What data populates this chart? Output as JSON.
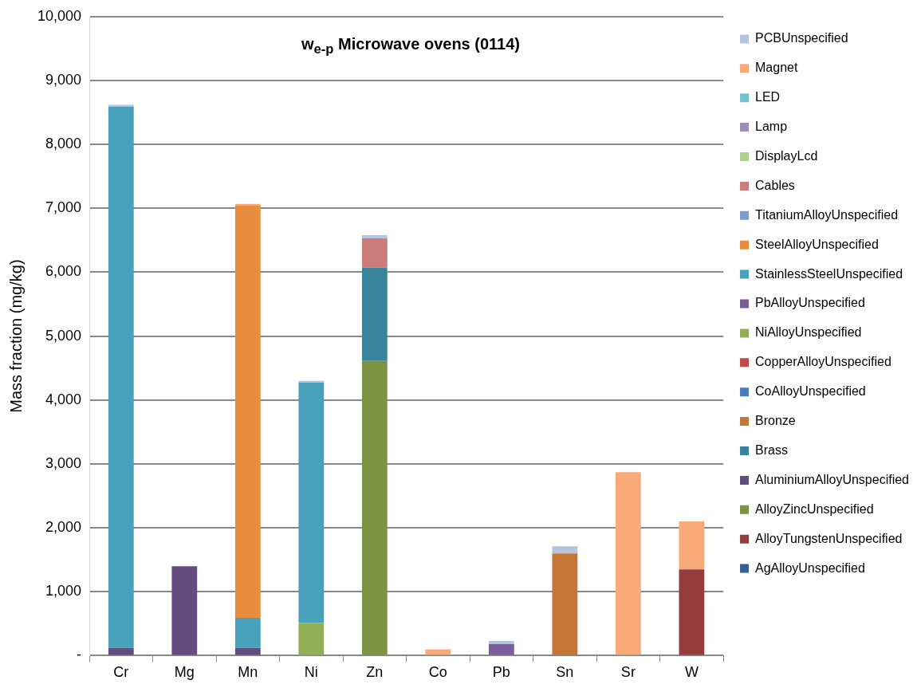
{
  "chart_data": {
    "type": "bar",
    "stacked": true,
    "title": "w$_{e-p}$ Microwave ovens (0114)",
    "ylabel": "Mass fraction (mg/kg)",
    "categories": [
      "Cr",
      "Mg",
      "Mn",
      "Ni",
      "Zn",
      "Co",
      "Pb",
      "Sn",
      "Sr",
      "W"
    ],
    "ylim": [
      0,
      10000
    ],
    "yticks": [
      {
        "value": 0,
        "label": "-"
      },
      {
        "value": 1000,
        "label": "1,000"
      },
      {
        "value": 2000,
        "label": "2,000"
      },
      {
        "value": 3000,
        "label": "3,000"
      },
      {
        "value": 4000,
        "label": "4,000"
      },
      {
        "value": 5000,
        "label": "5,000"
      },
      {
        "value": 6000,
        "label": "6,000"
      },
      {
        "value": 7000,
        "label": "7,000"
      },
      {
        "value": 8000,
        "label": "8,000"
      },
      {
        "value": 9000,
        "label": "9,000"
      },
      {
        "value": 10000,
        "label": "10,000"
      }
    ],
    "grid": "y",
    "legend": "right",
    "series": [
      {
        "name": "AgAlloyUnspecified",
        "color": "#3a5f96",
        "values": [
          null,
          null,
          null,
          null,
          null,
          null,
          null,
          null,
          null,
          null
        ]
      },
      {
        "name": "AlloyTungstenUnspecified",
        "color": "#953d3c",
        "values": [
          null,
          null,
          null,
          null,
          null,
          null,
          null,
          null,
          null,
          1350
        ]
      },
      {
        "name": "AlloyZincUnspecified",
        "color": "#7a9443",
        "values": [
          null,
          null,
          null,
          null,
          4610,
          null,
          null,
          null,
          null,
          null
        ]
      },
      {
        "name": "AluminiumAlloyUnspecified",
        "color": "#634d7f",
        "values": [
          120,
          1400,
          120,
          null,
          null,
          null,
          null,
          null,
          null,
          null
        ]
      },
      {
        "name": "Brass",
        "color": "#38849a",
        "values": [
          null,
          null,
          null,
          null,
          1460,
          null,
          null,
          null,
          null,
          null
        ]
      },
      {
        "name": "Bronze",
        "color": "#c37636",
        "values": [
          null,
          null,
          null,
          null,
          null,
          null,
          null,
          1600,
          null,
          null
        ]
      },
      {
        "name": "CoAlloyUnspecified",
        "color": "#4a7ebb",
        "values": [
          null,
          null,
          null,
          null,
          null,
          null,
          null,
          null,
          null,
          null
        ]
      },
      {
        "name": "CopperAlloyUnspecified",
        "color": "#be4b48",
        "values": [
          null,
          null,
          null,
          null,
          null,
          null,
          null,
          null,
          null,
          null
        ]
      },
      {
        "name": "NiAlloyUnspecified",
        "color": "#92af55",
        "values": [
          null,
          null,
          null,
          510,
          null,
          null,
          null,
          null,
          null,
          null
        ]
      },
      {
        "name": "PbAlloyUnspecified",
        "color": "#7a5e9a",
        "values": [
          null,
          null,
          null,
          null,
          null,
          null,
          180,
          null,
          null,
          null
        ]
      },
      {
        "name": "StainlessSteelUnspecified",
        "color": "#47a1bb",
        "values": [
          8470,
          null,
          470,
          3760,
          null,
          null,
          null,
          null,
          null,
          null
        ]
      },
      {
        "name": "SteelAlloyUnspecified",
        "color": "#e88d40",
        "values": [
          null,
          null,
          6450,
          null,
          null,
          null,
          null,
          null,
          null,
          null
        ]
      },
      {
        "name": "TitaniumAlloyUnspecified",
        "color": "#7f9ccf",
        "values": [
          null,
          null,
          null,
          null,
          null,
          null,
          null,
          null,
          null,
          null
        ]
      },
      {
        "name": "Cables",
        "color": "#cc7c7a",
        "values": [
          null,
          null,
          null,
          null,
          460,
          null,
          null,
          null,
          null,
          null
        ]
      },
      {
        "name": "DisplayLcd",
        "color": "#aed08a",
        "values": [
          null,
          null,
          null,
          null,
          null,
          null,
          null,
          null,
          null,
          null
        ]
      },
      {
        "name": "Lamp",
        "color": "#9e8cb8",
        "values": [
          null,
          null,
          null,
          null,
          null,
          null,
          null,
          null,
          null,
          null
        ]
      },
      {
        "name": "LED",
        "color": "#77c0d4",
        "values": [
          null,
          null,
          null,
          null,
          null,
          null,
          null,
          null,
          null,
          null
        ]
      },
      {
        "name": "Magnet",
        "color": "#f8aa78",
        "values": [
          null,
          null,
          30,
          null,
          null,
          100,
          null,
          null,
          2870,
          750
        ]
      },
      {
        "name": "PCBUnspecified",
        "color": "#b3c3e0",
        "values": [
          30,
          null,
          null,
          30,
          50,
          null,
          50,
          110,
          null,
          null
        ]
      }
    ]
  }
}
